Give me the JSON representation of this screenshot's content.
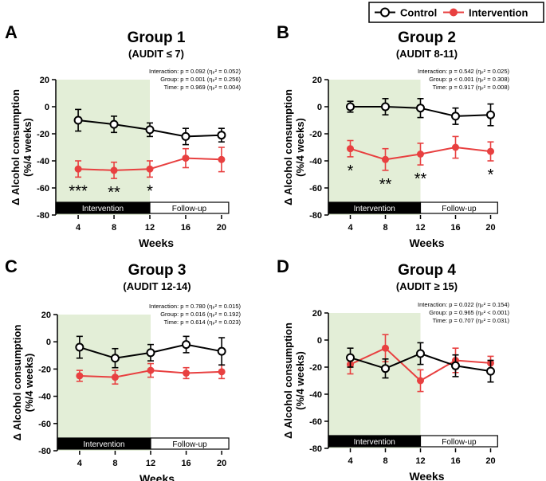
{
  "legend": {
    "items": [
      {
        "label": "Control",
        "color": "#000000",
        "marker": "open-circle"
      },
      {
        "label": "Intervention",
        "color": "#e84040",
        "marker": "filled-circle"
      }
    ]
  },
  "colors": {
    "control": "#000000",
    "intervention": "#e84040",
    "shade": "#e3eed7"
  },
  "chart_data": [
    {
      "panel": "A",
      "type": "line",
      "title": "Group 1",
      "subtitle": "(AUDIT ≤ 7)",
      "xlabel": "Weeks",
      "ylabel": "Δ Alcohol consumption\n(%/4 weeks)",
      "x": [
        4,
        8,
        12,
        16,
        20
      ],
      "xlim": [
        1.5,
        22.5
      ],
      "yticks": [
        20,
        0,
        -20,
        -40,
        -60,
        -80
      ],
      "ylim": [
        -80,
        20
      ],
      "shaded_until_week": 12,
      "phases": [
        {
          "label": "Intervention",
          "from": 1.5,
          "to": 12
        },
        {
          "label": "Follow-up",
          "from": 12,
          "to": 20.8
        }
      ],
      "stats": [
        "Interaction: p = 0.092 (ηₚ² = 0.052)",
        "Group: p = 0.001 (ηₚ² = 0.256)",
        "Time: p = 0.969 (ηₚ² = 0.004)"
      ],
      "series": [
        {
          "name": "Control",
          "values": [
            -10,
            -13,
            -17,
            -22,
            -21
          ],
          "errors": [
            8,
            6,
            5,
            6,
            5
          ]
        },
        {
          "name": "Intervention",
          "values": [
            -46,
            -47,
            -46,
            -38,
            -39
          ],
          "errors": [
            6,
            6,
            6,
            7,
            9
          ]
        }
      ],
      "significance": [
        {
          "x": 4,
          "label": "***"
        },
        {
          "x": 8,
          "label": "**"
        },
        {
          "x": 12,
          "label": "*"
        }
      ]
    },
    {
      "panel": "B",
      "type": "line",
      "title": "Group 2",
      "subtitle": "(AUDIT 8-11)",
      "xlabel": "Weeks",
      "ylabel": "Δ Alcohol consumption\n(%/4 weeks)",
      "x": [
        4,
        8,
        12,
        16,
        20
      ],
      "xlim": [
        1.5,
        22.5
      ],
      "yticks": [
        20,
        0,
        -20,
        -40,
        -60,
        -80
      ],
      "ylim": [
        -80,
        20
      ],
      "shaded_until_week": 12,
      "phases": [
        {
          "label": "Intervention",
          "from": 1.5,
          "to": 12
        },
        {
          "label": "Follow-up",
          "from": 12,
          "to": 20.8
        }
      ],
      "stats": [
        "Interaction: p = 0.542 (ηₚ² = 0.025)",
        "Group: p < 0.001 (ηₚ² = 0.308)",
        "Time: p = 0.917 (ηₚ² = 0.008)"
      ],
      "series": [
        {
          "name": "Control",
          "values": [
            0,
            0,
            -1,
            -7,
            -6
          ],
          "errors": [
            4,
            6,
            7,
            6,
            8
          ]
        },
        {
          "name": "Intervention",
          "values": [
            -31,
            -39,
            -35,
            -30,
            -33
          ],
          "errors": [
            6,
            8,
            8,
            8,
            7
          ]
        }
      ],
      "significance": [
        {
          "x": 4,
          "label": "*"
        },
        {
          "x": 8,
          "label": "**"
        },
        {
          "x": 12,
          "label": "**"
        },
        {
          "x": 20,
          "label": "*"
        }
      ]
    },
    {
      "panel": "C",
      "type": "line",
      "title": "Group 3",
      "subtitle": "(AUDIT 12-14)",
      "xlabel": "Weeks",
      "ylabel": "Δ Alcohol consumption\n(%/4 weeks)",
      "x": [
        4,
        8,
        12,
        16,
        20
      ],
      "xlim": [
        1.5,
        22.5
      ],
      "yticks": [
        20,
        0,
        -20,
        -40,
        -60,
        -80
      ],
      "ylim": [
        -80,
        20
      ],
      "shaded_until_week": 12,
      "phases": [
        {
          "label": "Intervention",
          "from": 1.5,
          "to": 12
        },
        {
          "label": "Follow-up",
          "from": 12,
          "to": 20.8
        }
      ],
      "stats": [
        "Interaction: p = 0.780 (ηₚ² = 0.015)",
        "Group: p = 0.016 (ηₚ² = 0.192)",
        "Time: p = 0.614 (ηₚ² = 0.023)"
      ],
      "series": [
        {
          "name": "Control",
          "values": [
            -4,
            -12,
            -8,
            -2,
            -7
          ],
          "errors": [
            8,
            7,
            6,
            6,
            10
          ]
        },
        {
          "name": "Intervention",
          "values": [
            -25,
            -26,
            -21,
            -23,
            -22
          ],
          "errors": [
            4,
            5,
            5,
            4,
            5
          ]
        }
      ],
      "significance": []
    },
    {
      "panel": "D",
      "type": "line",
      "title": "Group 4",
      "subtitle": "(AUDIT ≥ 15)",
      "xlabel": "Weeks",
      "ylabel": "Δ Alcohol consumption\n(%/4 weeks)",
      "x": [
        4,
        8,
        12,
        16,
        20
      ],
      "xlim": [
        1.5,
        22.5
      ],
      "yticks": [
        20,
        0,
        -20,
        -40,
        -60,
        -80
      ],
      "ylim": [
        -80,
        20
      ],
      "shaded_until_week": 12,
      "phases": [
        {
          "label": "Intervention",
          "from": 1.5,
          "to": 12
        },
        {
          "label": "Follow-up",
          "from": 12,
          "to": 20.8
        }
      ],
      "stats": [
        "Interaction: p = 0.022 (ηₚ² = 0.154)",
        "Group: p = 0.965 (ηₚ² < 0.001)",
        "Time: p = 0.707 (ηₚ² = 0.031)"
      ],
      "series": [
        {
          "name": "Control",
          "values": [
            -13,
            -21,
            -10,
            -19,
            -23
          ],
          "errors": [
            7,
            7,
            8,
            8,
            8
          ]
        },
        {
          "name": "Intervention",
          "values": [
            -18,
            -6,
            -30,
            -15,
            -17
          ],
          "errors": [
            7,
            10,
            8,
            9,
            5
          ]
        }
      ],
      "significance": []
    }
  ]
}
